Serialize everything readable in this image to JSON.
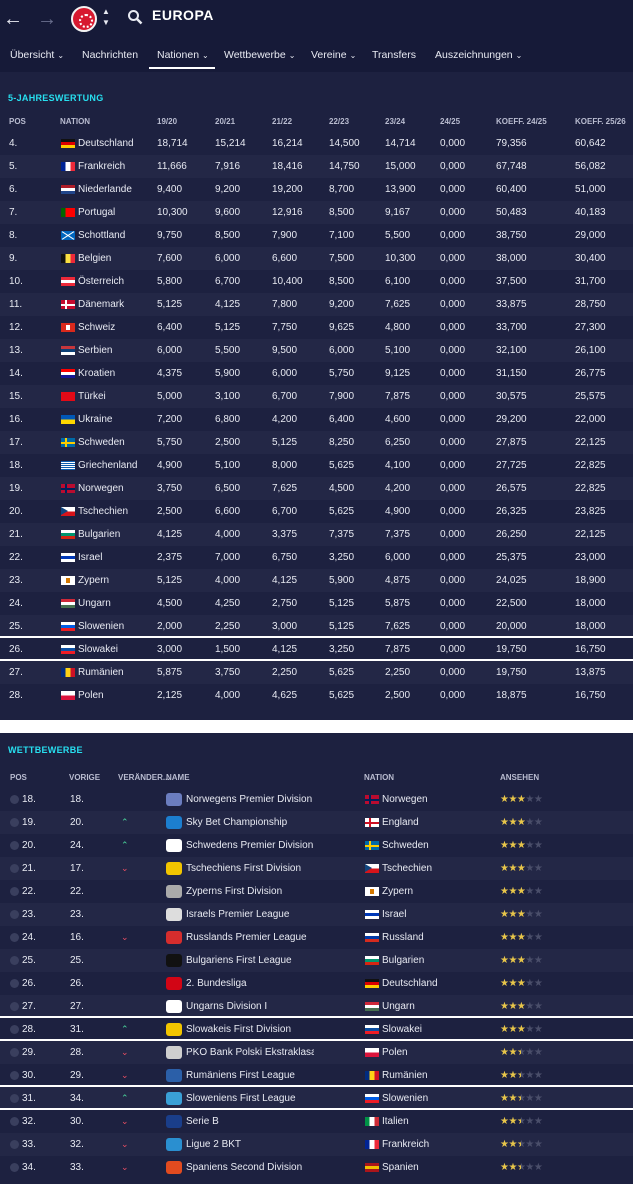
{
  "header": {
    "title": "EUROPA"
  },
  "nav": {
    "back_icon": "back-arrow-icon",
    "forward_icon": "forward-arrow-icon",
    "search_icon": "search-icon",
    "tabs": [
      {
        "label": "Übersicht",
        "has_dropdown": true
      },
      {
        "label": "Nachrichten",
        "has_dropdown": false
      },
      {
        "label": "Nationen",
        "has_dropdown": true,
        "active": true
      },
      {
        "label": "Wettbewerbe",
        "has_dropdown": true
      },
      {
        "label": "Vereine",
        "has_dropdown": true
      },
      {
        "label": "Transfers",
        "has_dropdown": false
      },
      {
        "label": "Auszeichnungen",
        "has_dropdown": true
      }
    ]
  },
  "coeff": {
    "title": "5-JAHRESWERTUNG",
    "headers": [
      "POS",
      "NATION",
      "19/20",
      "20/21",
      "21/22",
      "22/23",
      "23/24",
      "24/25",
      "KOEFF. 24/25",
      "KOEFF. 25/26"
    ],
    "rows": [
      {
        "pos": "4.",
        "nation": "Deutschland",
        "v": [
          "18,714",
          "15,214",
          "16,214",
          "14,500",
          "14,714",
          "0,000",
          "79,356",
          "60,642"
        ]
      },
      {
        "pos": "5.",
        "nation": "Frankreich",
        "v": [
          "11,666",
          "7,916",
          "18,416",
          "14,750",
          "15,000",
          "0,000",
          "67,748",
          "56,082"
        ]
      },
      {
        "pos": "6.",
        "nation": "Niederlande",
        "v": [
          "9,400",
          "9,200",
          "19,200",
          "8,700",
          "13,900",
          "0,000",
          "60,400",
          "51,000"
        ]
      },
      {
        "pos": "7.",
        "nation": "Portugal",
        "v": [
          "10,300",
          "9,600",
          "12,916",
          "8,500",
          "9,167",
          "0,000",
          "50,483",
          "40,183"
        ]
      },
      {
        "pos": "8.",
        "nation": "Schottland",
        "v": [
          "9,750",
          "8,500",
          "7,900",
          "7,100",
          "5,500",
          "0,000",
          "38,750",
          "29,000"
        ]
      },
      {
        "pos": "9.",
        "nation": "Belgien",
        "v": [
          "7,600",
          "6,000",
          "6,600",
          "7,500",
          "10,300",
          "0,000",
          "38,000",
          "30,400"
        ]
      },
      {
        "pos": "10.",
        "nation": "Österreich",
        "v": [
          "5,800",
          "6,700",
          "10,400",
          "8,500",
          "6,100",
          "0,000",
          "37,500",
          "31,700"
        ]
      },
      {
        "pos": "11.",
        "nation": "Dänemark",
        "v": [
          "5,125",
          "4,125",
          "7,800",
          "9,200",
          "7,625",
          "0,000",
          "33,875",
          "28,750"
        ]
      },
      {
        "pos": "12.",
        "nation": "Schweiz",
        "v": [
          "6,400",
          "5,125",
          "7,750",
          "9,625",
          "4,800",
          "0,000",
          "33,700",
          "27,300"
        ]
      },
      {
        "pos": "13.",
        "nation": "Serbien",
        "v": [
          "6,000",
          "5,500",
          "9,500",
          "6,000",
          "5,100",
          "0,000",
          "32,100",
          "26,100"
        ]
      },
      {
        "pos": "14.",
        "nation": "Kroatien",
        "v": [
          "4,375",
          "5,900",
          "6,000",
          "5,750",
          "9,125",
          "0,000",
          "31,150",
          "26,775"
        ]
      },
      {
        "pos": "15.",
        "nation": "Türkei",
        "v": [
          "5,000",
          "3,100",
          "6,700",
          "7,900",
          "7,875",
          "0,000",
          "30,575",
          "25,575"
        ]
      },
      {
        "pos": "16.",
        "nation": "Ukraine",
        "v": [
          "7,200",
          "6,800",
          "4,200",
          "6,400",
          "4,600",
          "0,000",
          "29,200",
          "22,000"
        ]
      },
      {
        "pos": "17.",
        "nation": "Schweden",
        "v": [
          "5,750",
          "2,500",
          "5,125",
          "8,250",
          "6,250",
          "0,000",
          "27,875",
          "22,125"
        ]
      },
      {
        "pos": "18.",
        "nation": "Griechenland",
        "v": [
          "4,900",
          "5,100",
          "8,000",
          "5,625",
          "4,100",
          "0,000",
          "27,725",
          "22,825"
        ]
      },
      {
        "pos": "19.",
        "nation": "Norwegen",
        "v": [
          "3,750",
          "6,500",
          "7,625",
          "4,500",
          "4,200",
          "0,000",
          "26,575",
          "22,825"
        ]
      },
      {
        "pos": "20.",
        "nation": "Tschechien",
        "v": [
          "2,500",
          "6,600",
          "6,700",
          "5,625",
          "4,900",
          "0,000",
          "26,325",
          "23,825"
        ]
      },
      {
        "pos": "21.",
        "nation": "Bulgarien",
        "v": [
          "4,125",
          "4,000",
          "3,375",
          "7,375",
          "7,375",
          "0,000",
          "26,250",
          "22,125"
        ]
      },
      {
        "pos": "22.",
        "nation": "Israel",
        "v": [
          "2,375",
          "7,000",
          "6,750",
          "3,250",
          "6,000",
          "0,000",
          "25,375",
          "23,000"
        ]
      },
      {
        "pos": "23.",
        "nation": "Zypern",
        "v": [
          "5,125",
          "4,000",
          "4,125",
          "5,900",
          "4,875",
          "0,000",
          "24,025",
          "18,900"
        ]
      },
      {
        "pos": "24.",
        "nation": "Ungarn",
        "v": [
          "4,500",
          "4,250",
          "2,750",
          "5,125",
          "5,875",
          "0,000",
          "22,500",
          "18,000"
        ]
      },
      {
        "pos": "25.",
        "nation": "Slowenien",
        "v": [
          "2,000",
          "2,250",
          "3,000",
          "5,125",
          "7,625",
          "0,000",
          "20,000",
          "18,000"
        ]
      },
      {
        "pos": "26.",
        "nation": "Slowakei",
        "v": [
          "3,000",
          "1,500",
          "4,125",
          "3,250",
          "7,875",
          "0,000",
          "19,750",
          "16,750"
        ]
      },
      {
        "pos": "27.",
        "nation": "Rumänien",
        "v": [
          "5,875",
          "3,750",
          "2,250",
          "5,625",
          "2,250",
          "0,000",
          "19,750",
          "13,875"
        ]
      },
      {
        "pos": "28.",
        "nation": "Polen",
        "v": [
          "2,125",
          "4,000",
          "4,625",
          "5,625",
          "2,500",
          "0,000",
          "18,875",
          "16,750"
        ]
      }
    ]
  },
  "comps": {
    "title": "WETTBEWERBE",
    "headers": [
      "POS",
      "VORIGE",
      "VERÄNDER...",
      "NAME",
      "NATION",
      "ANSEHEN"
    ],
    "rows": [
      {
        "pos": "18.",
        "prev": "18.",
        "trend": "",
        "name": "Norwegens Premier Division",
        "nation": "Norwegen",
        "rating": 3
      },
      {
        "pos": "19.",
        "prev": "20.",
        "trend": "up",
        "name": "Sky Bet Championship",
        "nation": "England",
        "rating": 3
      },
      {
        "pos": "20.",
        "prev": "24.",
        "trend": "up",
        "name": "Schwedens Premier Division",
        "nation": "Schweden",
        "rating": 3
      },
      {
        "pos": "21.",
        "prev": "17.",
        "trend": "down",
        "name": "Tschechiens First Division",
        "nation": "Tschechien",
        "rating": 3
      },
      {
        "pos": "22.",
        "prev": "22.",
        "trend": "",
        "name": "Zyperns First Division",
        "nation": "Zypern",
        "rating": 3
      },
      {
        "pos": "23.",
        "prev": "23.",
        "trend": "",
        "name": "Israels Premier League",
        "nation": "Israel",
        "rating": 3
      },
      {
        "pos": "24.",
        "prev": "16.",
        "trend": "down",
        "name": "Russlands Premier League",
        "nation": "Russland",
        "rating": 3
      },
      {
        "pos": "25.",
        "prev": "25.",
        "trend": "",
        "name": "Bulgariens First League",
        "nation": "Bulgarien",
        "rating": 3
      },
      {
        "pos": "26.",
        "prev": "26.",
        "trend": "",
        "name": "2. Bundesliga",
        "nation": "Deutschland",
        "rating": 3
      },
      {
        "pos": "27.",
        "prev": "27.",
        "trend": "",
        "name": "Ungarns Division I",
        "nation": "Ungarn",
        "rating": 3
      },
      {
        "pos": "28.",
        "prev": "31.",
        "trend": "up",
        "name": "Slowakeis First Division",
        "nation": "Slowakei",
        "rating": 3
      },
      {
        "pos": "29.",
        "prev": "28.",
        "trend": "down",
        "name": "PKO Bank Polski Ekstraklasa",
        "nation": "Polen",
        "rating": 2.5
      },
      {
        "pos": "30.",
        "prev": "29.",
        "trend": "down",
        "name": "Rumäniens First League",
        "nation": "Rumänien",
        "rating": 2.5
      },
      {
        "pos": "31.",
        "prev": "34.",
        "trend": "up",
        "name": "Sloweniens First League",
        "nation": "Slowenien",
        "rating": 2.5
      },
      {
        "pos": "32.",
        "prev": "30.",
        "trend": "down",
        "name": "Serie B",
        "nation": "Italien",
        "rating": 2.5
      },
      {
        "pos": "33.",
        "prev": "32.",
        "trend": "down",
        "name": "Ligue 2 BKT",
        "nation": "Frankreich",
        "rating": 2.5
      },
      {
        "pos": "34.",
        "prev": "33.",
        "trend": "down",
        "name": "Spaniens Second Division",
        "nation": "Spanien",
        "rating": 2.5
      }
    ]
  }
}
